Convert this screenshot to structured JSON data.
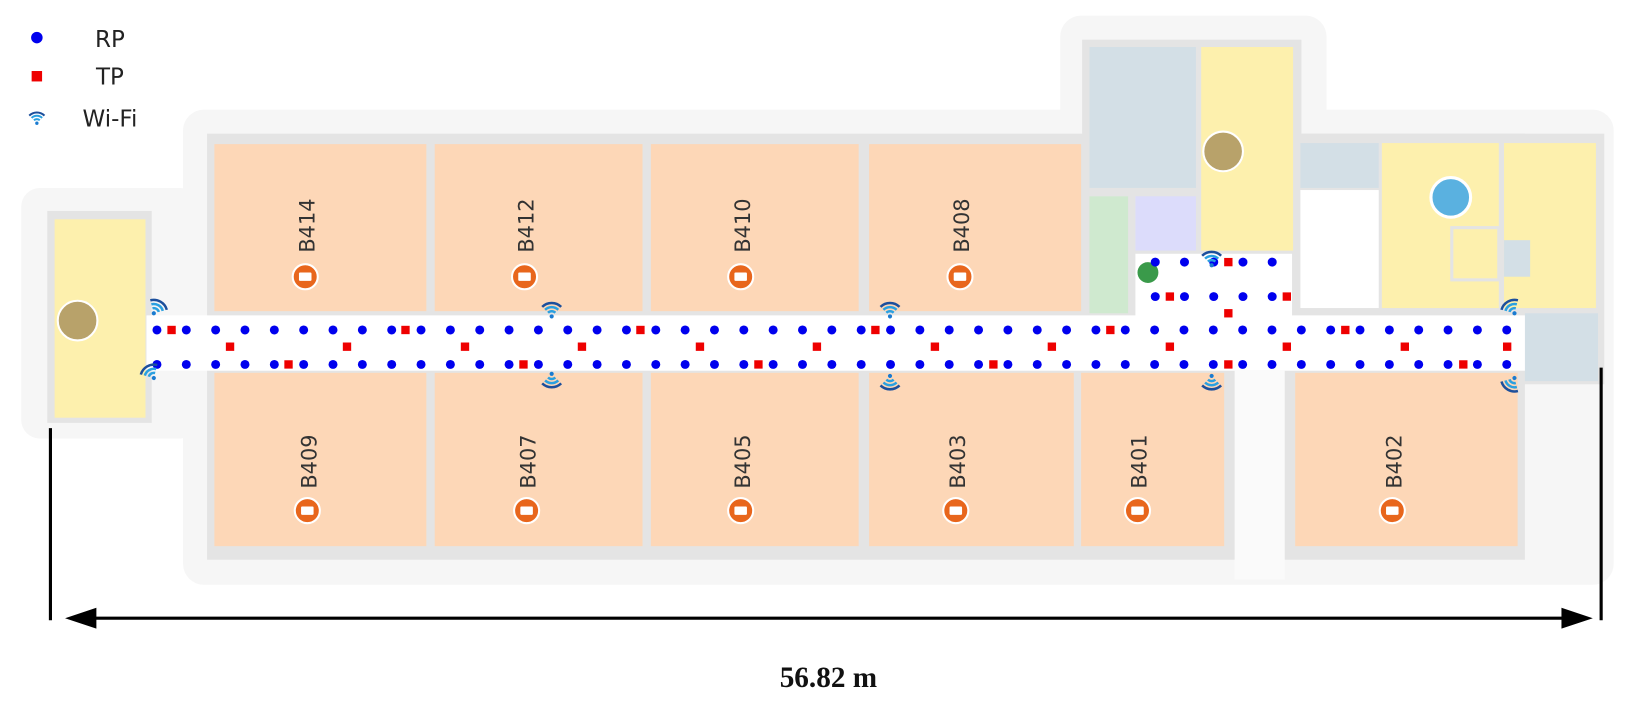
{
  "legend": [
    "RP",
    "TP",
    "Wi-Fi"
  ],
  "rooms": [
    "B414",
    "B412",
    "B410",
    "B408",
    "B409",
    "B407",
    "B405",
    "B403",
    "B401",
    "B402"
  ],
  "dimension": "56.82 m"
}
